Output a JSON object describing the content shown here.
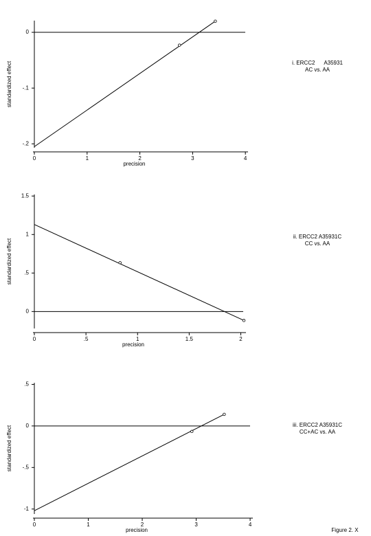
{
  "chart_data": [
    {
      "type": "scatter",
      "xlabel": "precision",
      "ylabel": "standardized effect",
      "annotation": [
        "i. ERCC2      A35931",
        "AC vs. AA"
      ],
      "xlim": [
        0,
        4.05
      ],
      "ylim": [
        -0.207,
        0.021
      ],
      "xticks": [
        0,
        1,
        2,
        3,
        4
      ],
      "yticks": [
        0,
        {
          "value": -0.1,
          "label": "-.1"
        },
        {
          "value": -0.2,
          "label": "-.2"
        }
      ],
      "points": {
        "x": [
          2.75,
          3.43
        ],
        "values": [
          -0.023,
          0.02
        ]
      },
      "fit_line": {
        "x": [
          0,
          3.43
        ],
        "values": [
          -0.205,
          0.02
        ]
      },
      "reference_line": 0
    },
    {
      "type": "scatter",
      "xlabel": "precision",
      "ylabel": "standardized effect",
      "annotation": [
        "ii. ERCC2 A35931C",
        "CC vs. AA"
      ],
      "xlim": [
        0,
        2.05
      ],
      "ylim": [
        -0.22,
        1.52
      ],
      "xticks": [
        0,
        {
          "value": 0.5,
          "label": ".5"
        },
        1,
        1.5,
        2
      ],
      "yticks": [
        1.5,
        1,
        {
          "value": 0.5,
          "label": ".5"
        },
        0
      ],
      "points": {
        "x": [
          0.83,
          2.03
        ],
        "values": [
          0.634,
          -0.116
        ]
      },
      "fit_line": {
        "x": [
          0,
          2.03
        ],
        "values": [
          1.13,
          -0.116
        ]
      },
      "reference_line": 0
    },
    {
      "type": "scatter",
      "xlabel": "precision",
      "ylabel": "standardized effect",
      "annotation": [
        "iii. ERCC2 A35931C",
        "CC+AC vs. AA"
      ],
      "xlim": [
        0,
        4.05
      ],
      "ylim": [
        -1.06,
        0.52
      ],
      "xticks": [
        0,
        1,
        2,
        3,
        4
      ],
      "yticks": [
        {
          "value": 0.5,
          "label": ".5"
        },
        0,
        {
          "value": -0.5,
          "label": "-.5"
        },
        -1
      ],
      "points": {
        "x": [
          2.92,
          3.52
        ],
        "values": [
          -0.066,
          0.14
        ]
      },
      "fit_line": {
        "x": [
          0,
          3.52
        ],
        "values": [
          -1.02,
          0.14
        ]
      },
      "reference_line": 0
    }
  ],
  "footer": "Figure 2. X"
}
